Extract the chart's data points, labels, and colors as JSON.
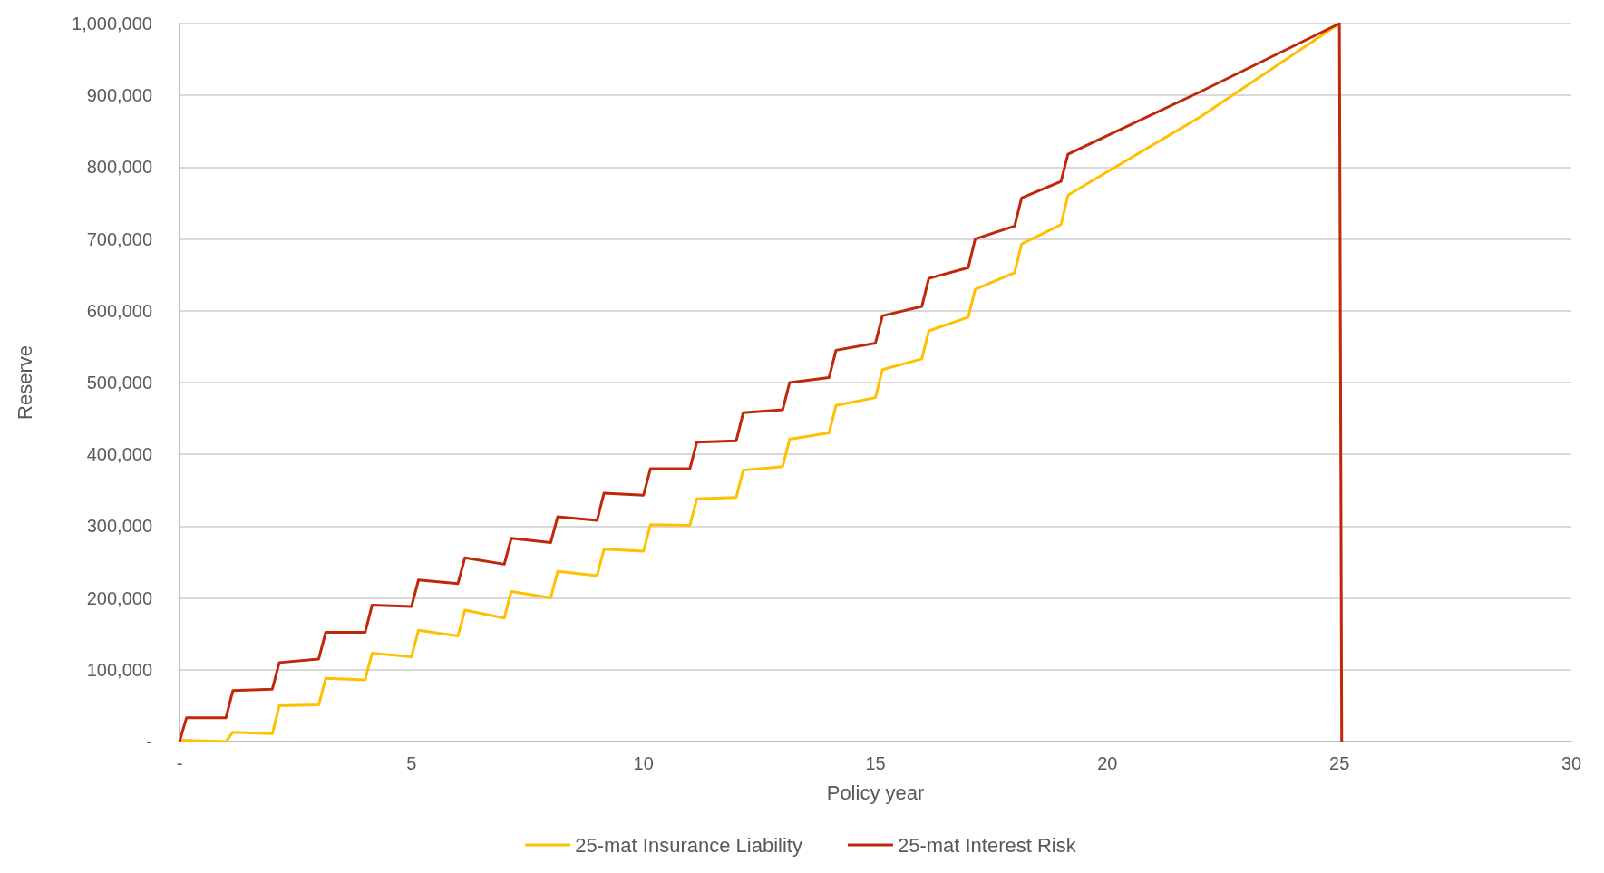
{
  "chart_data": {
    "type": "line",
    "xlabel": "Policy year",
    "ylabel": "Reserve",
    "xlim": [
      0,
      30
    ],
    "xticks": [
      {
        "value": 0,
        "label": "-"
      },
      5,
      10,
      15,
      20,
      25,
      30
    ],
    "ylim": [
      0,
      1000000
    ],
    "yticks": [
      {
        "value": 0,
        "label": "-"
      },
      {
        "value": 100000,
        "label": "100,000"
      },
      {
        "value": 200000,
        "label": "200,000"
      },
      {
        "value": 300000,
        "label": "300,000"
      },
      {
        "value": 400000,
        "label": "400,000"
      },
      {
        "value": 500000,
        "label": "500,000"
      },
      {
        "value": 600000,
        "label": "600,000"
      },
      {
        "value": 700000,
        "label": "700,000"
      },
      {
        "value": 800000,
        "label": "800,000"
      },
      {
        "value": 900000,
        "label": "900,000"
      },
      {
        "value": 1000000,
        "label": "1,000,000"
      }
    ],
    "grid": "y",
    "legend": "bottom",
    "marker": "none",
    "line_style": "solid",
    "series": [
      {
        "name": "25-mat Insurance Liability",
        "color": "#ffc000",
        "x": [
          0,
          1,
          1.15,
          2,
          2.15,
          3,
          3.15,
          4,
          4.15,
          5,
          5.15,
          6,
          6.15,
          7,
          7.15,
          8,
          8.15,
          9,
          9.15,
          10,
          10.15,
          11,
          11.15,
          12,
          12.15,
          13,
          13.15,
          14,
          14.15,
          15,
          15.15,
          16,
          16.15,
          17,
          17.15,
          18,
          18.15,
          19,
          19.15,
          22,
          25
        ],
        "values": [
          2000,
          0,
          13000,
          11000,
          50000,
          51000,
          88000,
          86000,
          123000,
          118000,
          155000,
          147000,
          183000,
          172000,
          209000,
          200000,
          237000,
          231000,
          268000,
          265000,
          302000,
          301000,
          338000,
          340000,
          378000,
          383000,
          421000,
          430000,
          468000,
          479000,
          518000,
          533000,
          572000,
          591000,
          630000,
          653000,
          693000,
          720000,
          761000,
          870000,
          1000000
        ]
      },
      {
        "name": "25-mat Interest Risk",
        "color": "#c0280a",
        "x": [
          0,
          0.15,
          1,
          1.15,
          2,
          2.15,
          3,
          3.15,
          4,
          4.15,
          5,
          5.15,
          6,
          6.15,
          7,
          7.15,
          8,
          8.15,
          9,
          9.15,
          10,
          10.15,
          11,
          11.15,
          12,
          12.15,
          13,
          13.15,
          14,
          14.15,
          15,
          15.15,
          16,
          16.15,
          17,
          17.15,
          18,
          18.15,
          19,
          19.15,
          22,
          25,
          25.05
        ],
        "values": [
          0,
          33000,
          33000,
          71000,
          73000,
          110000,
          115000,
          152000,
          152000,
          190000,
          188000,
          225000,
          220000,
          256000,
          247000,
          283000,
          277000,
          313000,
          308000,
          346000,
          343000,
          380000,
          380000,
          417000,
          419000,
          458000,
          462000,
          500000,
          507000,
          545000,
          555000,
          593000,
          606000,
          645000,
          660000,
          700000,
          718000,
          757000,
          780000,
          818000,
          905000,
          1000000,
          0
        ]
      }
    ]
  }
}
